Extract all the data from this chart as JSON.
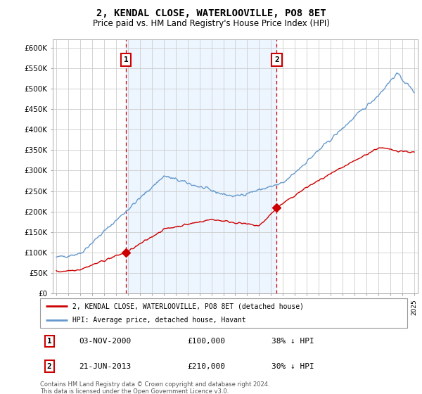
{
  "title": "2, KENDAL CLOSE, WATERLOOVILLE, PO8 8ET",
  "subtitle": "Price paid vs. HM Land Registry's House Price Index (HPI)",
  "legend_line1": "2, KENDAL CLOSE, WATERLOOVILLE, PO8 8ET (detached house)",
  "legend_line2": "HPI: Average price, detached house, Havant",
  "transaction1_date": "03-NOV-2000",
  "transaction1_price": "£100,000",
  "transaction1_hpi": "38% ↓ HPI",
  "transaction2_date": "21-JUN-2013",
  "transaction2_price": "£210,000",
  "transaction2_hpi": "30% ↓ HPI",
  "footer": "Contains HM Land Registry data © Crown copyright and database right 2024.\nThis data is licensed under the Open Government Licence v3.0.",
  "red_color": "#cc0000",
  "blue_color": "#6699cc",
  "blue_fill": "#ddeeff",
  "grid_color": "#cccccc",
  "marker1_year": 2000.83,
  "marker2_year": 2013.47,
  "ylim_min": 0,
  "ylim_max": 620000
}
